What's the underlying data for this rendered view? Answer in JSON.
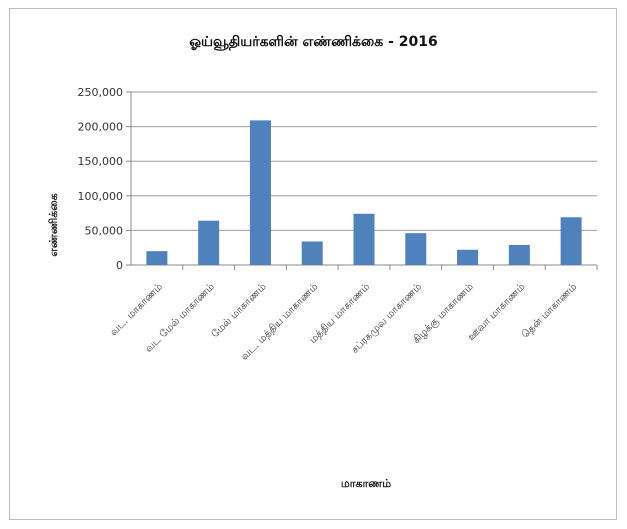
{
  "chart_data": {
    "type": "bar",
    "title": "ஓய்வூதியர்களின் எண்ணிக்கை - 2016",
    "xlabel": "மாகாணம்",
    "ylabel": "எண்ணிக்கை",
    "categories": [
      "வட. மாகாணம்",
      "வட மேல் மாகாணம்",
      "மேல் மாகாணம்",
      "வட. மத்திய மாகாணம்",
      "மத்திய மாகாணம்",
      "சப்ரகமுவ மாகாணம்",
      "கிழக்கு மாகாணம்",
      "ஊவா மாகாணம்",
      "தென் மாகாணம்"
    ],
    "values": [
      20000,
      64000,
      209000,
      34000,
      74000,
      46000,
      22000,
      29000,
      69000
    ],
    "ylim": [
      0,
      250000
    ],
    "yticks": [
      0,
      50000,
      100000,
      150000,
      200000,
      250000
    ],
    "ytick_labels": [
      "0",
      "50,000",
      "100,000",
      "150,000",
      "200,000",
      "250,000"
    ],
    "bar_color": "#4f81bd",
    "grid": true,
    "legend": "none"
  }
}
